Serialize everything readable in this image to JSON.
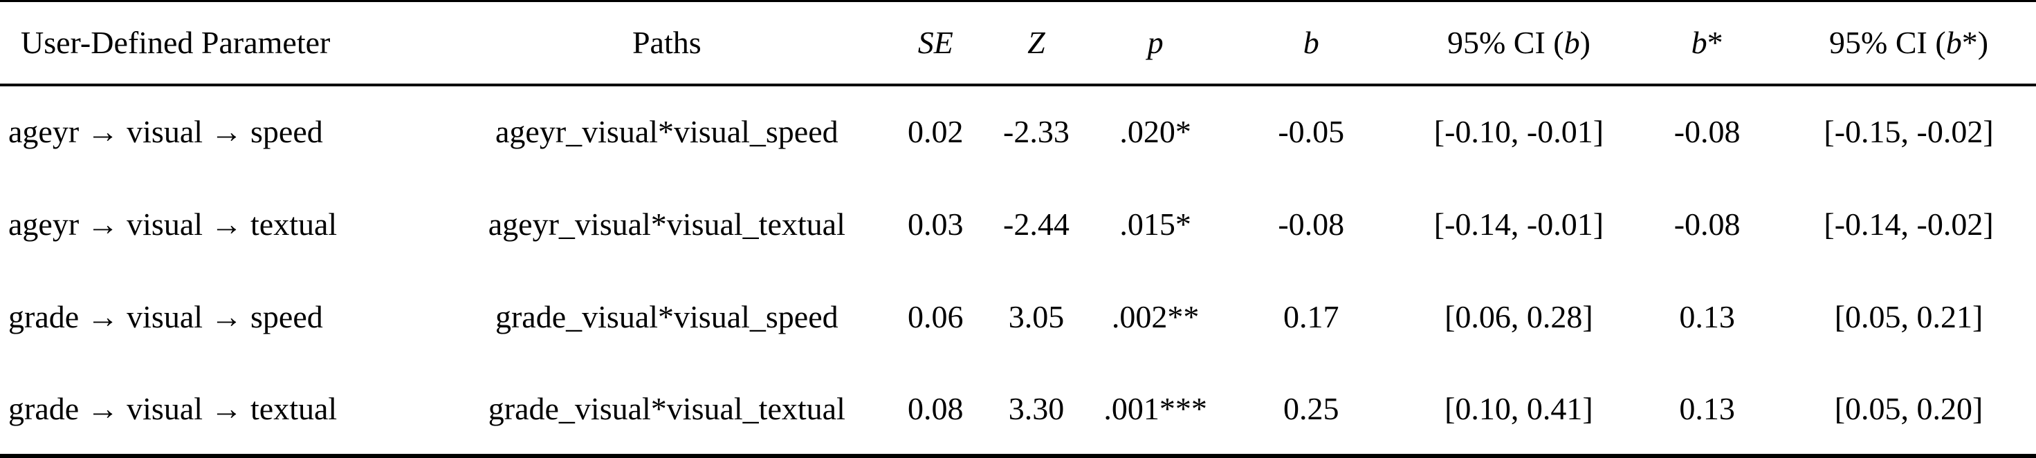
{
  "table": {
    "headers": [
      {
        "key": "param",
        "align": "left",
        "segments": [
          {
            "t": "User-Defined Parameter"
          }
        ]
      },
      {
        "key": "paths",
        "segments": [
          {
            "t": "Paths"
          }
        ]
      },
      {
        "key": "se",
        "segments": [
          {
            "t": "SE",
            "i": true
          }
        ]
      },
      {
        "key": "z",
        "segments": [
          {
            "t": "Z",
            "i": true
          }
        ]
      },
      {
        "key": "p",
        "segments": [
          {
            "t": "p",
            "i": true
          }
        ]
      },
      {
        "key": "b",
        "segments": [
          {
            "t": "b",
            "i": true
          }
        ]
      },
      {
        "key": "ci_b",
        "segments": [
          {
            "t": "95% CI ("
          },
          {
            "t": "b",
            "i": true
          },
          {
            "t": ")"
          }
        ]
      },
      {
        "key": "b_std",
        "segments": [
          {
            "t": "b",
            "i": true
          },
          {
            "t": "*"
          }
        ]
      },
      {
        "key": "ci_b_std",
        "segments": [
          {
            "t": "95% CI ("
          },
          {
            "t": "b",
            "i": true
          },
          {
            "t": "*)"
          }
        ]
      }
    ],
    "col_widths_pct": [
      21.7,
      22.1,
      4.3,
      5.6,
      6.1,
      9.2,
      11.2,
      7.3,
      12.5
    ],
    "rows": [
      {
        "cells": [
          "ageyr → visual → speed",
          "ageyr_visual*visual_speed",
          "0.02",
          "-2.33",
          ".020*",
          "-0.05",
          "[-0.10, -0.01]",
          "-0.08",
          "[-0.15, -0.02]"
        ]
      },
      {
        "cells": [
          "ageyr → visual → textual",
          "ageyr_visual*visual_textual",
          "0.03",
          "-2.44",
          ".015*",
          "-0.08",
          "[-0.14, -0.01]",
          "-0.08",
          "[-0.14, -0.02]"
        ]
      },
      {
        "cells": [
          "grade → visual → speed",
          "grade_visual*visual_speed",
          "0.06",
          "3.05",
          ".002**",
          "0.17",
          "[0.06, 0.28]",
          "0.13",
          "[0.05, 0.21]"
        ]
      },
      {
        "cells": [
          "grade → visual → textual",
          "grade_visual*visual_textual",
          "0.08",
          "3.30",
          ".001***",
          "0.25",
          "[0.10, 0.41]",
          "0.13",
          "[0.05, 0.20]"
        ]
      }
    ]
  },
  "colors": {
    "text": "#000000",
    "background": "#ffffff",
    "rule": "#000000"
  }
}
